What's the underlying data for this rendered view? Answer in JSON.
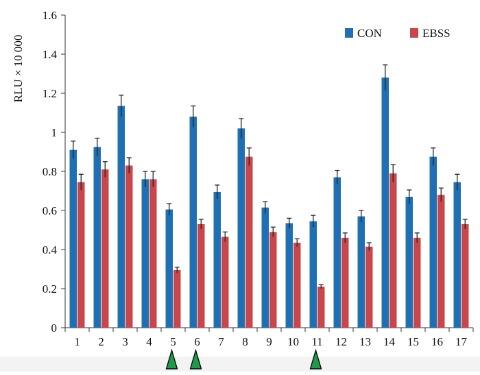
{
  "chart_data": {
    "type": "bar",
    "title": "",
    "xlabel": "",
    "ylabel": "RLU × 10 000",
    "ylim": [
      0,
      1.6
    ],
    "yticks": [
      0,
      0.2,
      0.4,
      0.6,
      0.8,
      1,
      1.2,
      1.4,
      1.6
    ],
    "ytick_labels": [
      "0",
      "0.2",
      "0.4",
      "0.6",
      "0.8",
      "1",
      "1.2",
      "1.4",
      "1.6"
    ],
    "categories": [
      "1",
      "2",
      "3",
      "4",
      "5",
      "6",
      "7",
      "8",
      "9",
      "10",
      "11",
      "12",
      "13",
      "14",
      "15",
      "16",
      "17"
    ],
    "series": [
      {
        "name": "CON",
        "color": "#1f6fb4",
        "values": [
          0.91,
          0.925,
          1.135,
          0.76,
          0.605,
          1.08,
          0.695,
          1.02,
          0.615,
          0.535,
          0.545,
          0.77,
          0.57,
          1.28,
          0.67,
          0.875,
          0.745
        ],
        "errors": [
          0.045,
          0.045,
          0.055,
          0.04,
          0.03,
          0.055,
          0.035,
          0.05,
          0.03,
          0.025,
          0.03,
          0.035,
          0.03,
          0.065,
          0.035,
          0.045,
          0.04
        ]
      },
      {
        "name": "EBSS",
        "color": "#c9474a",
        "values": [
          0.745,
          0.81,
          0.83,
          0.76,
          0.295,
          0.53,
          0.465,
          0.875,
          0.49,
          0.435,
          0.21,
          0.46,
          0.415,
          0.79,
          0.46,
          0.68,
          0.53
        ],
        "errors": [
          0.04,
          0.04,
          0.04,
          0.04,
          0.015,
          0.025,
          0.025,
          0.045,
          0.025,
          0.02,
          0.01,
          0.025,
          0.02,
          0.045,
          0.025,
          0.035,
          0.025
        ]
      }
    ],
    "legend_position": "top-right",
    "markers": {
      "type": "triangle",
      "color": "#1f9a4a",
      "categories": [
        "5",
        "6",
        "11"
      ]
    }
  }
}
